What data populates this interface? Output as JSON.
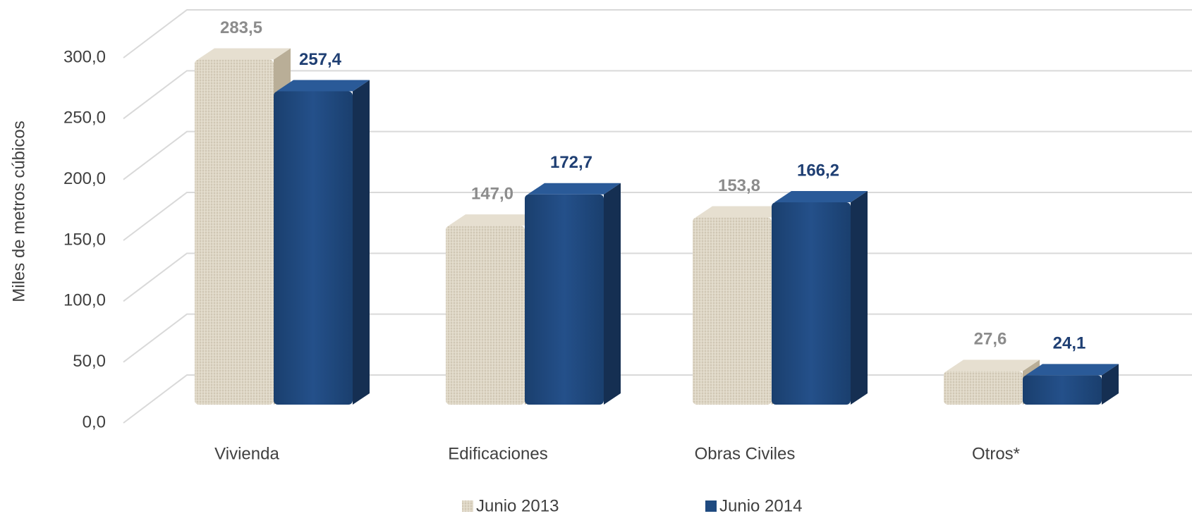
{
  "chart_data": {
    "type": "bar3d",
    "y_label": "Miles de metros cúbicos",
    "categories": [
      "Vivienda",
      "Edificaciones",
      "Obras Civiles",
      "Otros*"
    ],
    "series": [
      {
        "name": "Junio 2013",
        "color": "#d9d1bf",
        "values": [
          283.5,
          147.0,
          153.8,
          27.6
        ],
        "value_labels": [
          "283,5",
          "147,0",
          "153,8",
          "27,6"
        ]
      },
      {
        "name": "Junio 2014",
        "color": "#1f4a80",
        "values": [
          257.4,
          172.7,
          166.2,
          24.1
        ],
        "value_labels": [
          "257,4",
          "172,7",
          "166,2",
          "24,1"
        ]
      }
    ],
    "ylim": [
      0,
      300
    ],
    "yticks": [
      {
        "value": 0,
        "label": "0,0"
      },
      {
        "value": 50,
        "label": "50,0"
      },
      {
        "value": 100,
        "label": "100,0"
      },
      {
        "value": 150,
        "label": "150,0"
      },
      {
        "value": 200,
        "label": "200,0"
      },
      {
        "value": 250,
        "label": "250,0"
      },
      {
        "value": 300,
        "label": "300,0"
      }
    ],
    "grid": true
  }
}
